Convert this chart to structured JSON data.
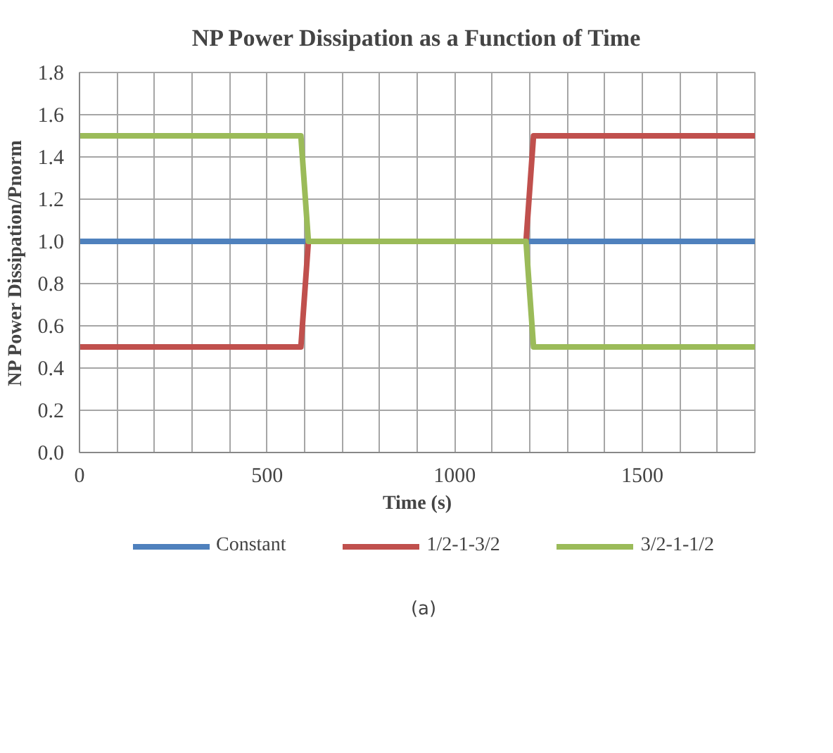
{
  "chart_data": {
    "type": "line",
    "title": "NP Power Dissipation as a Function of Time",
    "xlabel": "Time (s)",
    "ylabel": "NP Power Dissipation/Pnorm",
    "series": [
      {
        "name": "Constant",
        "color": "#4f81bd",
        "x": [
          0,
          1800
        ],
        "values": [
          1.0,
          1.0
        ]
      },
      {
        "name": "1/2-1-3/2",
        "color": "#c0504d",
        "x": [
          0,
          590,
          610,
          1190,
          1210,
          1800
        ],
        "values": [
          0.5,
          0.5,
          1.0,
          1.0,
          1.5,
          1.5
        ]
      },
      {
        "name": "3/2-1-1/2",
        "color": "#9bbb59",
        "x": [
          0,
          590,
          610,
          1190,
          1210,
          1800
        ],
        "values": [
          1.5,
          1.5,
          1.0,
          1.0,
          0.5,
          0.5
        ]
      }
    ],
    "xlim": [
      0,
      1800
    ],
    "ylim": [
      0,
      1.8
    ],
    "xticks": [
      0,
      {
        "value": 100,
        "label": null
      },
      {
        "value": 200,
        "label": null
      },
      {
        "value": 300,
        "label": null
      },
      {
        "value": 400,
        "label": null
      },
      500,
      {
        "value": 600,
        "label": null
      },
      {
        "value": 700,
        "label": null
      },
      {
        "value": 800,
        "label": null
      },
      {
        "value": 900,
        "label": null
      },
      1000,
      {
        "value": 1100,
        "label": null
      },
      {
        "value": 1200,
        "label": null
      },
      {
        "value": 1300,
        "label": null
      },
      {
        "value": 1400,
        "label": null
      },
      1500,
      {
        "value": 1600,
        "label": null
      },
      {
        "value": 1700,
        "label": null
      },
      {
        "value": 1800,
        "label": null
      }
    ],
    "yticks": [
      {
        "value": 0,
        "label": "0.0"
      },
      {
        "value": 0.2,
        "label": "0.2"
      },
      {
        "value": 0.4,
        "label": "0.4"
      },
      {
        "value": 0.6,
        "label": "0.6"
      },
      {
        "value": 0.8,
        "label": "0.8"
      },
      {
        "value": 1.0,
        "label": "1.0"
      },
      {
        "value": 1.2,
        "label": "1.2"
      },
      {
        "value": 1.4,
        "label": "1.4"
      },
      {
        "value": 1.6,
        "label": "1.6"
      },
      {
        "value": 1.8,
        "label": "1.8"
      }
    ],
    "grid": true,
    "legend": "bottom",
    "marker": "none",
    "line_style": "solid",
    "annotations": [
      "(a)"
    ]
  }
}
